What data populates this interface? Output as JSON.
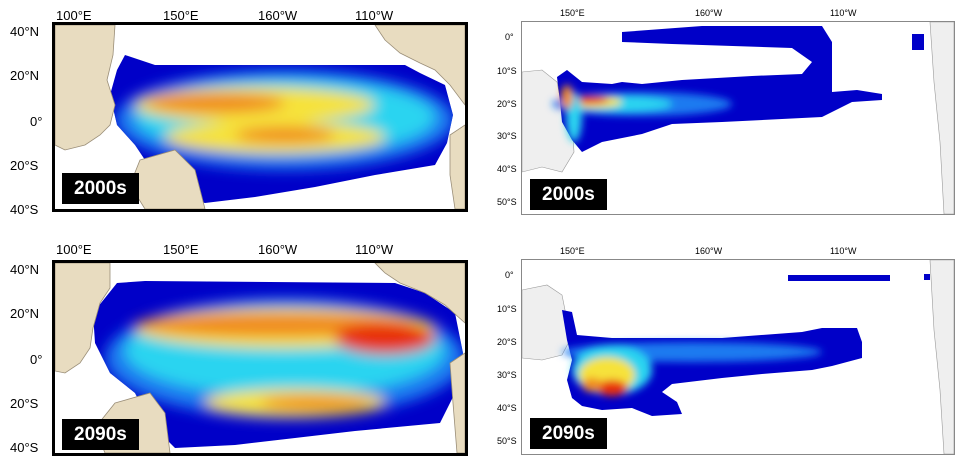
{
  "panels": [
    {
      "id": "tl",
      "lon_ticks": [
        "100°E",
        "150°E",
        "160°W",
        "110°W"
      ],
      "lat_ticks": [
        "40°N",
        "20°N",
        "0°",
        "20°S",
        "40°S"
      ],
      "period": "2000s"
    },
    {
      "id": "tr",
      "lon_ticks": [
        "150°E",
        "160°W",
        "110°W"
      ],
      "lat_ticks": [
        "0°",
        "10°S",
        "20°S",
        "30°S",
        "40°S",
        "50°S"
      ],
      "period": "2000s"
    },
    {
      "id": "bl",
      "lon_ticks": [
        "100°E",
        "150°E",
        "160°W",
        "110°W"
      ],
      "lat_ticks": [
        "40°N",
        "20°N",
        "0°",
        "20°S",
        "40°S"
      ],
      "period": "2090s"
    },
    {
      "id": "br",
      "lon_ticks": [
        "150°E",
        "160°W",
        "110°W"
      ],
      "lat_ticks": [
        "0°",
        "10°S",
        "20°S",
        "30°S",
        "40°S",
        "50°S"
      ],
      "period": "2090s"
    }
  ],
  "colors": {
    "land": "#e8dcc0",
    "land_light": "#efefef",
    "low": "#0000c8",
    "mid": "#2ad4f0",
    "high_mid": "#f6e23a",
    "high": "#e83010"
  }
}
